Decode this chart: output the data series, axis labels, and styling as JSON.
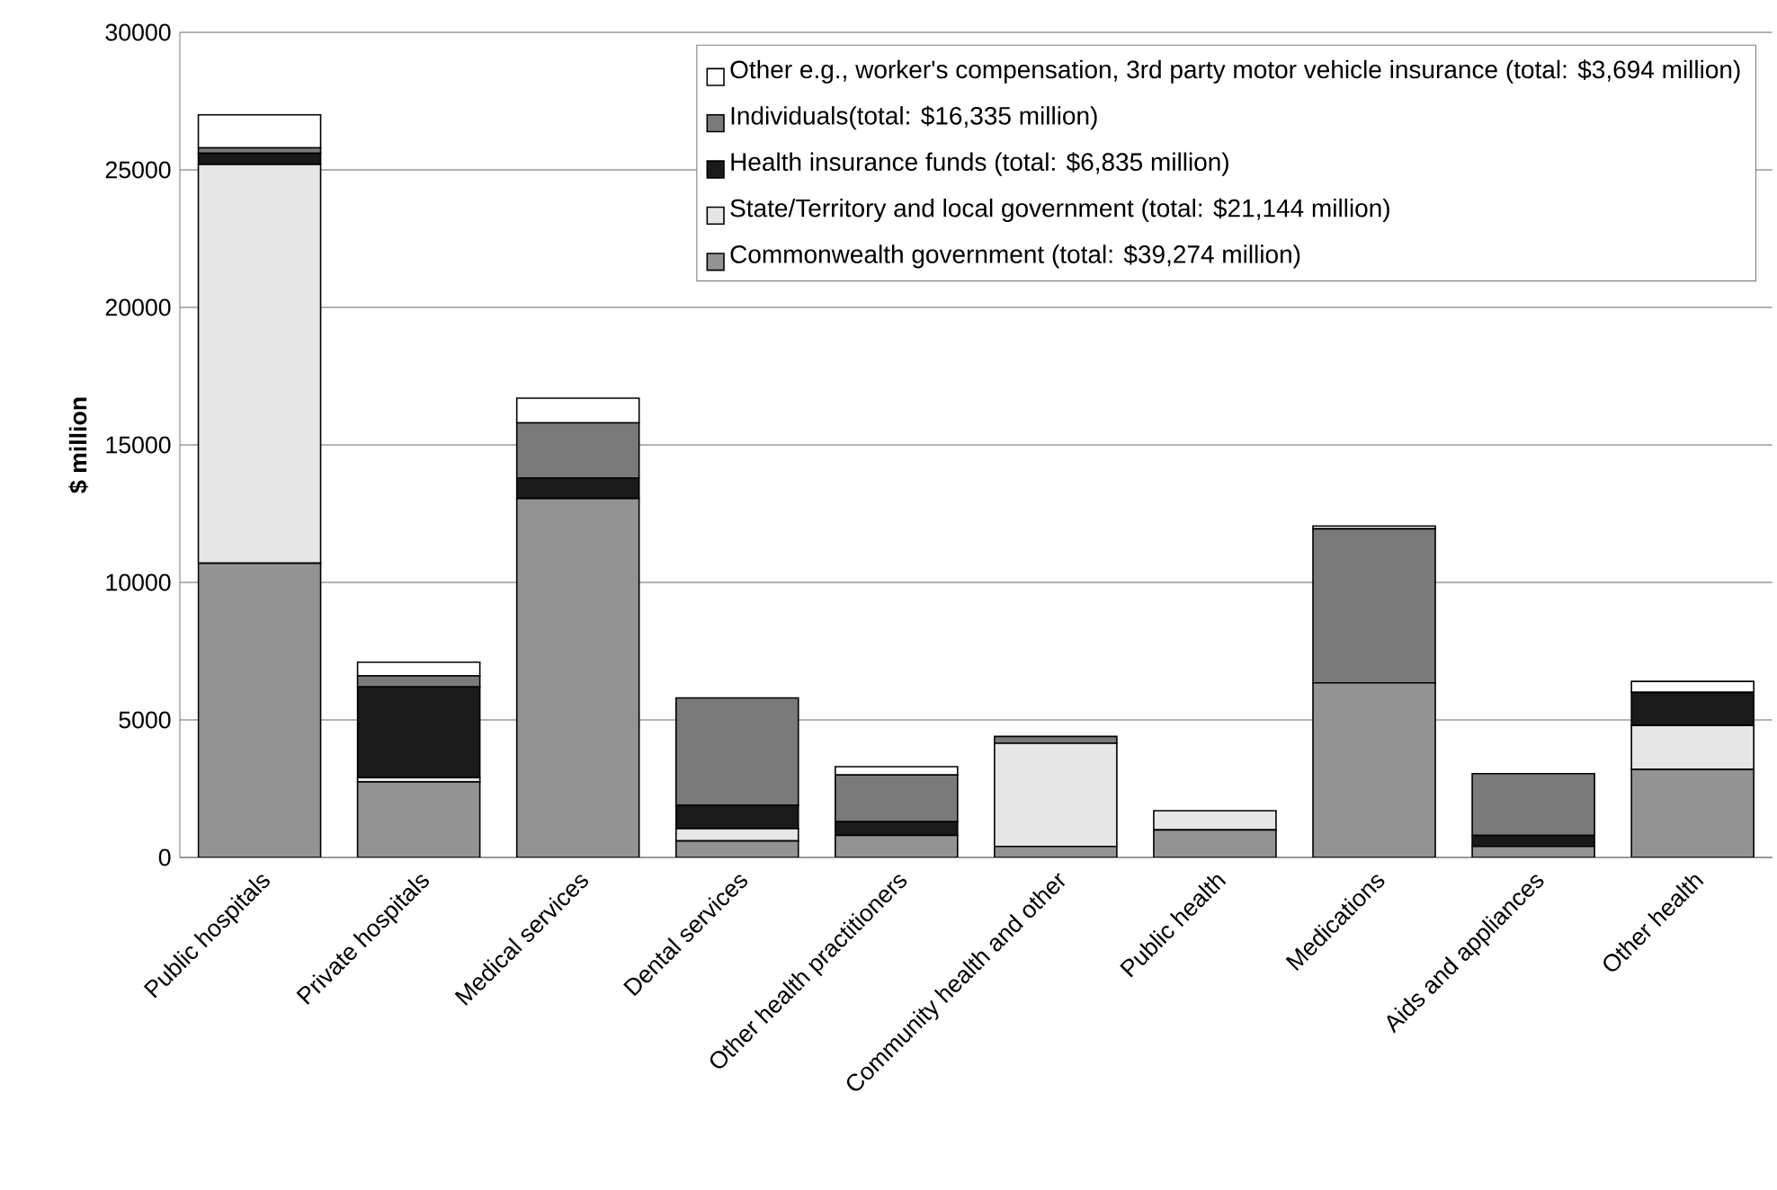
{
  "chart_data": {
    "type": "bar",
    "stacked": true,
    "ylabel": "$ million",
    "categories": [
      "Public hospitals",
      "Private hospitals",
      "Medical services",
      "Dental services",
      "Other health practitioners",
      "Community health and other",
      "Public health",
      "Medications",
      "Aids and appliances",
      "Other health"
    ],
    "series": [
      {
        "name": "Commonwealth government (total: $39,274 million)",
        "color": "#939393",
        "values": [
          10700,
          2750,
          13050,
          600,
          800,
          400,
          1000,
          6350,
          400,
          3200
        ]
      },
      {
        "name": "State/Territory and local government (total: $21,144 million)",
        "color": "#e6e6e6",
        "values": [
          14500,
          150,
          0,
          450,
          0,
          3750,
          700,
          0,
          0,
          1600
        ]
      },
      {
        "name": "Health insurance funds (total: $6,835 million)",
        "color": "#1a1a1a",
        "values": [
          400,
          3300,
          750,
          850,
          500,
          0,
          0,
          0,
          400,
          1200
        ]
      },
      {
        "name": "Individuals(total: $16,335 million)",
        "color": "#7a7a7a",
        "values": [
          200,
          400,
          2000,
          3900,
          1700,
          250,
          0,
          5600,
          2250,
          0
        ]
      },
      {
        "name": "Other e.g., worker's compensation, 3rd party motor vehicle insurance (total: $3,694 million)",
        "color": "#ffffff",
        "values": [
          1200,
          500,
          900,
          0,
          300,
          0,
          0,
          100,
          0,
          400
        ]
      }
    ],
    "ylim": [
      0,
      30000
    ],
    "yticks": [
      0,
      5000,
      10000,
      15000,
      20000,
      25000,
      30000
    ],
    "grid": "y",
    "legend": "top right"
  }
}
